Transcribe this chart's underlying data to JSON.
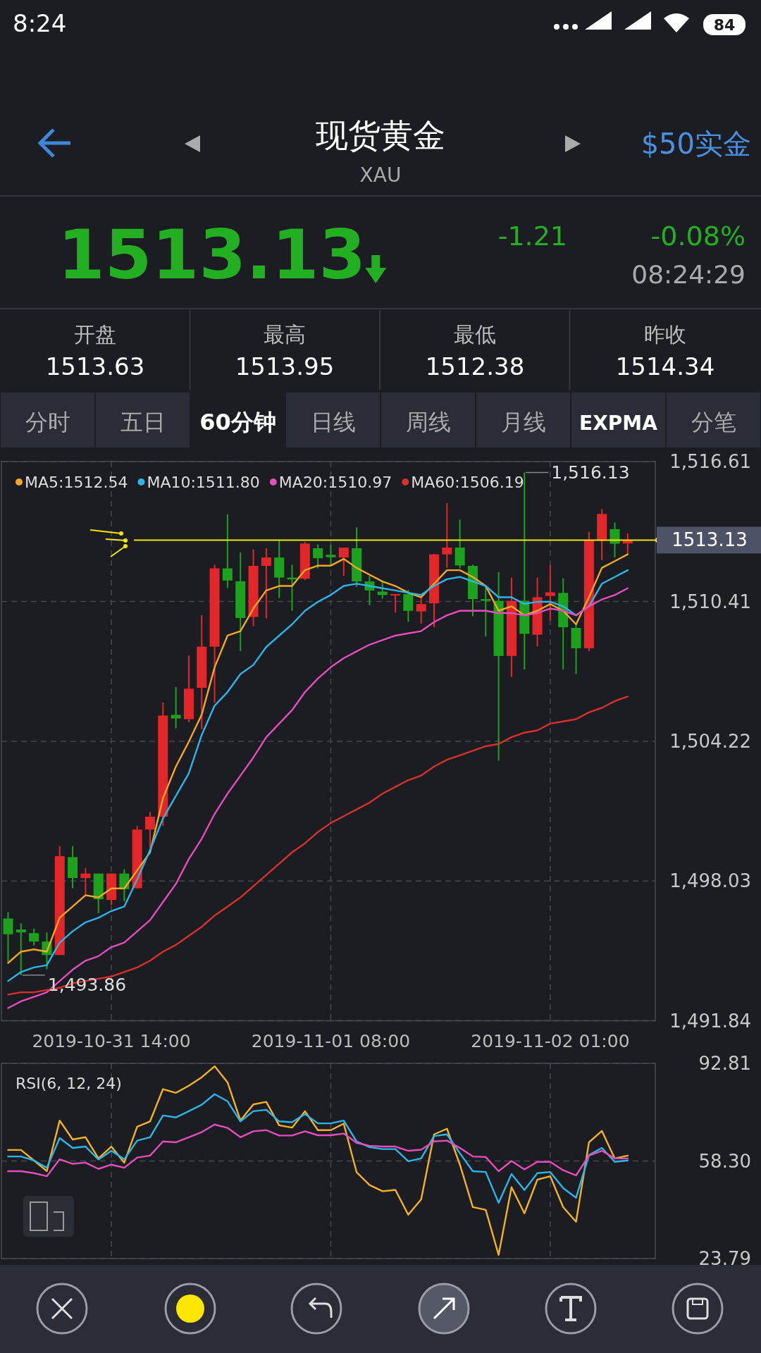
{
  "chart_data": [
    {
      "type": "other",
      "title": "现货黄金",
      "subtitle": "XAU",
      "annotations": [
        "8:24",
        "84",
        "$50实金",
        "1513.13",
        "-1.21",
        "-0.08%",
        "08:24:29",
        "开盘",
        "1513.63",
        "最高",
        "1513.95",
        "最低",
        "1512.38",
        "昨收",
        "1514.34",
        "分时",
        "五日",
        "60分钟",
        "日线",
        "周线",
        "月线",
        "EXPMA",
        "分笔"
      ]
    },
    {
      "type": "candlestick",
      "categories": [
        null,
        null,
        null,
        null,
        null,
        null,
        null,
        null,
        "2019-10-31 14:00",
        null,
        null,
        null,
        null,
        null,
        null,
        null,
        null,
        null,
        null,
        null,
        null,
        null,
        null,
        null,
        null,
        "2019-11-01 08:00",
        null,
        null,
        null,
        null,
        null,
        null,
        null,
        null,
        null,
        null,
        null,
        null,
        null,
        null,
        null,
        null,
        "2019-11-02 01:00",
        null,
        null,
        null,
        null,
        null,
        null
      ],
      "ohlc": [
        [
          1496.37,
          1496.65,
          1494.45,
          1495.67
        ],
        [
          1495.88,
          1496.16,
          1493.86,
          1495.75
        ],
        [
          1495.72,
          1495.92,
          1495.18,
          1495.35
        ],
        [
          1495.35,
          1495.75,
          1494.12,
          1494.75
        ],
        [
          1494.75,
          1499.58,
          1494.75,
          1499.13
        ],
        [
          1499.09,
          1499.58,
          1497.71,
          1498.16
        ],
        [
          1498.16,
          1498.6,
          1497.38,
          1498.36
        ],
        [
          1498.36,
          1498.36,
          1496.6,
          1497.22
        ],
        [
          1497.19,
          1498.36,
          1496.97,
          1498.36
        ],
        [
          1498.36,
          1498.55,
          1497.14,
          1497.67
        ],
        [
          1497.71,
          1500.47,
          1497.71,
          1500.31
        ],
        [
          1500.31,
          1501.08,
          1499.5,
          1500.88
        ],
        [
          1500.88,
          1505.93,
          1500.47,
          1505.36
        ],
        [
          1505.39,
          1506.62,
          1504.79,
          1505.23
        ],
        [
          1505.2,
          1508.02,
          1505.07,
          1506.55
        ],
        [
          1506.59,
          1509.81,
          1504.76,
          1508.41
        ],
        [
          1508.41,
          1512.04,
          1505.93,
          1511.88
        ],
        [
          1511.88,
          1514.27,
          1511.01,
          1511.34
        ],
        [
          1511.31,
          1512.58,
          1508.21,
          1509.68
        ],
        [
          1509.73,
          1512.72,
          1509.32,
          1511.99
        ],
        [
          1511.99,
          1512.77,
          1509.66,
          1512.36
        ],
        [
          1512.36,
          1513.15,
          1510.57,
          1511.47
        ],
        [
          1511.47,
          1512.04,
          1510.0,
          1511.39
        ],
        [
          1511.42,
          1513.05,
          1511.36,
          1512.98
        ],
        [
          1512.77,
          1512.94,
          1511.88,
          1512.33
        ],
        [
          1512.48,
          1512.92,
          1511.99,
          1512.37
        ],
        [
          1512.36,
          1512.8,
          1511.55,
          1512.8
        ],
        [
          1512.77,
          1513.7,
          1511.06,
          1511.3
        ],
        [
          1511.3,
          1511.55,
          1510.25,
          1510.9
        ],
        [
          1510.85,
          1511.3,
          1510.54,
          1510.7
        ],
        [
          1510.69,
          1510.74,
          1509.92,
          1510.74
        ],
        [
          1510.74,
          1510.93,
          1509.51,
          1510.0
        ],
        [
          1509.97,
          1510.57,
          1509.43,
          1510.3
        ],
        [
          1510.33,
          1512.53,
          1509.27,
          1512.5
        ],
        [
          1512.5,
          1514.77,
          1511.91,
          1512.8
        ],
        [
          1512.8,
          1514.04,
          1511.88,
          1512.01
        ],
        [
          1511.99,
          1512.04,
          1509.76,
          1510.52
        ],
        [
          1510.52,
          1511.06,
          1508.86,
          1510.44
        ],
        [
          1510.44,
          1511.71,
          1503.36,
          1508.0
        ],
        [
          1508.0,
          1511.47,
          1507.07,
          1510.44
        ],
        [
          1510.44,
          1516.13,
          1507.4,
          1508.98
        ],
        [
          1508.94,
          1511.47,
          1508.42,
          1510.6
        ],
        [
          1510.66,
          1512.04,
          1509.56,
          1510.82
        ],
        [
          1510.79,
          1511.44,
          1507.4,
          1509.27
        ],
        [
          1509.24,
          1509.43,
          1507.2,
          1508.34
        ],
        [
          1508.34,
          1513.5,
          1508.21,
          1513.13
        ],
        [
          1513.13,
          1514.51,
          1512.25,
          1514.29
        ],
        [
          1513.62,
          1513.91,
          1512.37,
          1512.97
        ],
        [
          1512.98,
          1513.42,
          1512.52,
          1513.13
        ]
      ],
      "colors": [
        "#1ca21c",
        "#1ca21c",
        "#1ca21c",
        "#1ca21c",
        "#e3262a",
        "#1ca21c",
        "#e3262a",
        "#1ca21c",
        "#e3262a",
        "#1ca21c",
        "#e3262a",
        "#e3262a",
        "#e3262a",
        "#1ca21c",
        "#e3262a",
        "#e3262a",
        "#e3262a",
        "#1ca21c",
        "#1ca21c",
        "#e3262a",
        "#e3262a",
        "#1ca21c",
        "#1ca21c",
        "#e3262a",
        "#1ca21c",
        "#1ca21c",
        "#e3262a",
        "#1ca21c",
        "#1ca21c",
        "#1ca21c",
        "#e3262a",
        "#1ca21c",
        "#e3262a",
        "#e3262a",
        "#e3262a",
        "#1ca21c",
        "#1ca21c",
        "#1ca21c",
        "#1ca21c",
        "#e3262a",
        "#1ca21c",
        "#e3262a",
        "#e3262a",
        "#1ca21c",
        "#1ca21c",
        "#e3262a",
        "#e3262a",
        "#1ca21c",
        "#e3262a"
      ],
      "series": [
        {
          "name": "MA5:1512.54",
          "type": "line",
          "color": "#f5a623",
          "values": [
            1494.4,
            1494.9,
            1495.0,
            1494.9,
            1496.4,
            1496.9,
            1497.4,
            1497.3,
            1497.7,
            1497.7,
            1498.5,
            1499.3,
            1501.7,
            1503.1,
            1504.2,
            1505.4,
            1507.5,
            1508.9,
            1509.1,
            1510.1,
            1510.9,
            1511.1,
            1511.1,
            1511.8,
            1512.0,
            1512.0,
            1512.3,
            1511.9,
            1511.6,
            1511.3,
            1511.1,
            1510.8,
            1510.6,
            1511.2,
            1511.8,
            1511.8,
            1511.5,
            1511.1,
            1510.0,
            1510.2,
            1509.8,
            1510.0,
            1510.3,
            1510.0,
            1509.4,
            1510.6,
            1511.9,
            1512.2,
            1512.5
          ]
        },
        {
          "name": "MA10:1511.80",
          "type": "line",
          "color": "#2bb5e8",
          "values": [
            1493.6,
            1494.0,
            1494.2,
            1494.3,
            1495.3,
            1495.8,
            1496.2,
            1496.4,
            1496.7,
            1496.9,
            1498.1,
            1499.4,
            1500.8,
            1501.8,
            1502.8,
            1504.5,
            1505.8,
            1506.4,
            1507.2,
            1507.6,
            1508.4,
            1508.9,
            1509.4,
            1510.0,
            1510.4,
            1510.7,
            1511.1,
            1511.2,
            1511.1,
            1511.0,
            1510.9,
            1510.8,
            1510.7,
            1511.1,
            1511.4,
            1511.5,
            1511.3,
            1511.1,
            1510.6,
            1510.6,
            1510.3,
            1510.4,
            1510.4,
            1510.2,
            1509.8,
            1510.2,
            1511.2,
            1511.5,
            1511.8
          ]
        },
        {
          "name": "MA20:1510.97",
          "type": "line",
          "color": "#e54cbd",
          "values": [
            1492.4,
            1492.7,
            1492.9,
            1493.1,
            1493.6,
            1494.1,
            1494.5,
            1494.7,
            1495.1,
            1495.3,
            1495.8,
            1496.3,
            1497.1,
            1497.9,
            1499.0,
            1499.9,
            1501.0,
            1501.9,
            1502.7,
            1503.5,
            1504.4,
            1505.0,
            1505.6,
            1506.4,
            1507.0,
            1507.5,
            1507.9,
            1508.2,
            1508.5,
            1508.7,
            1508.9,
            1509.0,
            1509.1,
            1509.5,
            1509.8,
            1510.0,
            1510.0,
            1510.0,
            1509.9,
            1509.9,
            1509.8,
            1509.9,
            1510.1,
            1510.0,
            1509.8,
            1510.2,
            1510.5,
            1510.7,
            1511.0
          ]
        },
        {
          "name": "MA60:1506.19",
          "type": "line",
          "color": "#d8302c",
          "values": [
            1493.0,
            1493.1,
            1493.1,
            1493.2,
            1493.3,
            1493.5,
            1493.6,
            1493.7,
            1493.8,
            1494.0,
            1494.2,
            1494.5,
            1494.9,
            1495.2,
            1495.6,
            1496.0,
            1496.5,
            1496.9,
            1497.3,
            1497.8,
            1498.3,
            1498.8,
            1499.3,
            1499.7,
            1500.2,
            1500.6,
            1500.9,
            1501.2,
            1501.5,
            1501.9,
            1502.2,
            1502.5,
            1502.7,
            1503.1,
            1503.4,
            1503.6,
            1503.8,
            1504.0,
            1504.1,
            1504.4,
            1504.6,
            1504.7,
            1505.0,
            1505.1,
            1505.2,
            1505.5,
            1505.7,
            1506.0,
            1506.2
          ]
        }
      ],
      "ylim": [
        1491.84,
        1516.61
      ],
      "yticks": [
        {
          "value": 1491.84,
          "label": "1,491.84"
        },
        {
          "value": 1498.03,
          "label": "1,498.03"
        },
        {
          "value": 1504.22,
          "label": "1,504.22"
        },
        {
          "value": 1510.41,
          "label": "1,510.41"
        },
        {
          "value": 1516.61,
          "label": "1,516.61"
        }
      ],
      "grid": true,
      "legend": "top left",
      "ref_lines": [
        {
          "axis": "y",
          "value": 1513.13,
          "label": "1513.13",
          "color": "#f2e600"
        }
      ],
      "annotations": [
        "1,516.13",
        "1,493.86"
      ]
    },
    {
      "type": "line",
      "title": "RSI(6, 12, 24)",
      "categories": [
        null,
        null,
        null,
        null,
        null,
        null,
        null,
        null,
        "2019-10-31 14:00",
        null,
        null,
        null,
        null,
        null,
        null,
        null,
        null,
        null,
        null,
        null,
        null,
        null,
        null,
        null,
        null,
        "2019-11-01 08:00",
        null,
        null,
        null,
        null,
        null,
        null,
        null,
        null,
        null,
        null,
        null,
        null,
        null,
        null,
        null,
        null,
        "2019-11-02 01:00",
        null,
        null,
        null,
        null,
        null,
        null
      ],
      "series": [
        {
          "color": "#f5b120",
          "values": [
            62.2,
            62.2,
            58.5,
            54.7,
            72.6,
            65.9,
            66.7,
            59.2,
            63.4,
            57.7,
            70.4,
            72.3,
            83.7,
            82.4,
            84.9,
            87.9,
            91.8,
            86.1,
            72.6,
            78.3,
            79.2,
            70.9,
            70.1,
            75.9,
            69.2,
            69.2,
            71.5,
            54.3,
            49.8,
            47.6,
            48.1,
            39.3,
            44.7,
            67.7,
            69.7,
            57.0,
            42.0,
            41.0,
            25.1,
            49.0,
            39.8,
            51.7,
            52.9,
            42.0,
            36.8,
            64.9,
            68.9,
            59.2,
            60.2
          ]
        },
        {
          "color": "#2bb5e8",
          "values": [
            59.9,
            59.9,
            58.5,
            55.9,
            66.4,
            62.9,
            63.4,
            58.8,
            61.9,
            58.9,
            65.5,
            66.7,
            74.4,
            73.7,
            75.9,
            78.2,
            81.9,
            79.4,
            72.3,
            75.9,
            76.4,
            72.3,
            72.0,
            74.9,
            71.6,
            71.6,
            72.6,
            65.2,
            63.2,
            62.5,
            62.5,
            58.2,
            59.2,
            67.1,
            67.7,
            61.0,
            54.7,
            54.4,
            43.5,
            53.7,
            48.0,
            54.0,
            54.4,
            48.7,
            45.3,
            60.4,
            62.9,
            58.0,
            58.5
          ]
        },
        {
          "color": "#e54cbd",
          "values": [
            54.7,
            54.7,
            54.0,
            52.9,
            58.9,
            57.3,
            57.7,
            55.5,
            57.0,
            55.9,
            59.5,
            60.2,
            65.2,
            64.9,
            66.7,
            68.5,
            71.2,
            70.0,
            66.7,
            68.8,
            69.2,
            67.3,
            67.3,
            68.8,
            67.4,
            67.4,
            68.0,
            64.7,
            63.7,
            63.4,
            63.4,
            61.9,
            62.3,
            65.2,
            65.5,
            62.9,
            59.9,
            59.7,
            54.7,
            58.3,
            55.3,
            58.0,
            58.0,
            55.0,
            53.2,
            60.2,
            61.9,
            59.2,
            59.2
          ]
        }
      ],
      "ylim": [
        23.79,
        92.81
      ],
      "yticks": [
        23.79,
        {
          "value": 58.3,
          "label": "58.30"
        },
        92.81
      ],
      "grid": true,
      "tick_labels": "y"
    }
  ]
}
